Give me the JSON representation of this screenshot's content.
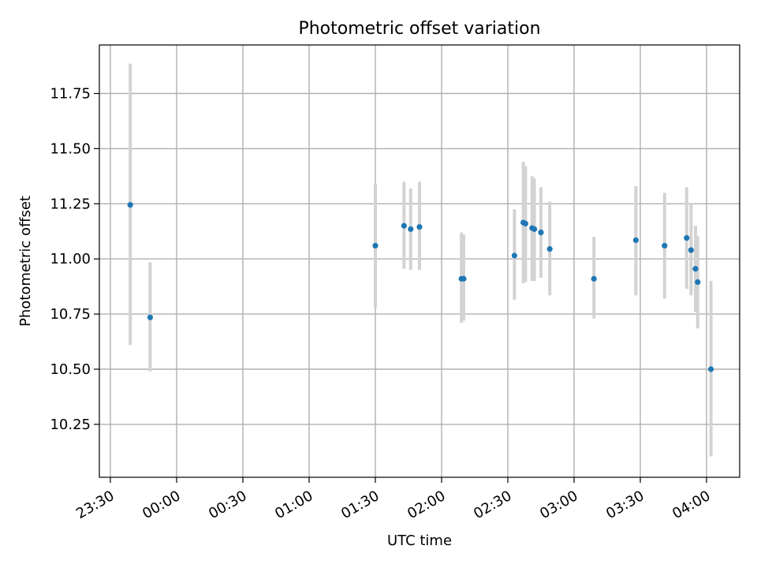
{
  "chart_data": {
    "type": "scatter",
    "title": "Photometric offset variation",
    "xlabel": "UTC time",
    "ylabel": "Photometric offset",
    "xlim_minutes_from_2330": [
      -5,
      285
    ],
    "ylim": [
      10.01,
      11.97
    ],
    "grid": true,
    "xticks": [
      "23:30",
      "00:00",
      "00:30",
      "01:00",
      "01:30",
      "02:00",
      "02:30",
      "03:00",
      "03:30",
      "04:00"
    ],
    "yticks": [
      "10.25",
      "10.50",
      "10.75",
      "11.00",
      "11.25",
      "11.50",
      "11.75"
    ],
    "marker_color": "#1f77b4",
    "errorbar_color": "#d3d3d3",
    "points": [
      {
        "x": "23:39",
        "y": 11.245,
        "ylow": 10.61,
        "yhigh": 11.885
      },
      {
        "x": "23:48",
        "y": 10.735,
        "ylow": 10.49,
        "yhigh": 10.985
      },
      {
        "x": "01:30",
        "y": 11.06,
        "ylow": 10.78,
        "yhigh": 11.34
      },
      {
        "x": "01:43",
        "y": 11.15,
        "ylow": 10.955,
        "yhigh": 11.35
      },
      {
        "x": "01:46",
        "y": 11.135,
        "ylow": 10.95,
        "yhigh": 11.32
      },
      {
        "x": "01:50",
        "y": 11.145,
        "ylow": 10.95,
        "yhigh": 11.35
      },
      {
        "x": "02:09",
        "y": 10.91,
        "ylow": 10.71,
        "yhigh": 11.12
      },
      {
        "x": "02:10",
        "y": 10.91,
        "ylow": 10.72,
        "yhigh": 11.11
      },
      {
        "x": "02:33",
        "y": 11.015,
        "ylow": 10.815,
        "yhigh": 11.225
      },
      {
        "x": "02:37",
        "y": 11.165,
        "ylow": 10.89,
        "yhigh": 11.44
      },
      {
        "x": "02:38",
        "y": 11.16,
        "ylow": 10.895,
        "yhigh": 11.42
      },
      {
        "x": "02:41",
        "y": 11.14,
        "ylow": 10.9,
        "yhigh": 11.375
      },
      {
        "x": "02:42",
        "y": 11.135,
        "ylow": 10.9,
        "yhigh": 11.365
      },
      {
        "x": "02:45",
        "y": 11.12,
        "ylow": 10.915,
        "yhigh": 11.325
      },
      {
        "x": "02:49",
        "y": 11.045,
        "ylow": 10.835,
        "yhigh": 11.26
      },
      {
        "x": "03:09",
        "y": 10.91,
        "ylow": 10.73,
        "yhigh": 11.1
      },
      {
        "x": "03:28",
        "y": 11.085,
        "ylow": 10.835,
        "yhigh": 11.33
      },
      {
        "x": "03:41",
        "y": 11.06,
        "ylow": 10.82,
        "yhigh": 11.3
      },
      {
        "x": "03:51",
        "y": 11.095,
        "ylow": 10.865,
        "yhigh": 11.325
      },
      {
        "x": "03:53",
        "y": 11.04,
        "ylow": 10.835,
        "yhigh": 11.25
      },
      {
        "x": "03:55",
        "y": 10.955,
        "ylow": 10.76,
        "yhigh": 11.15
      },
      {
        "x": "03:56",
        "y": 10.895,
        "ylow": 10.685,
        "yhigh": 11.105
      },
      {
        "x": "04:02",
        "y": 10.5,
        "ylow": 10.105,
        "yhigh": 10.9
      }
    ]
  }
}
